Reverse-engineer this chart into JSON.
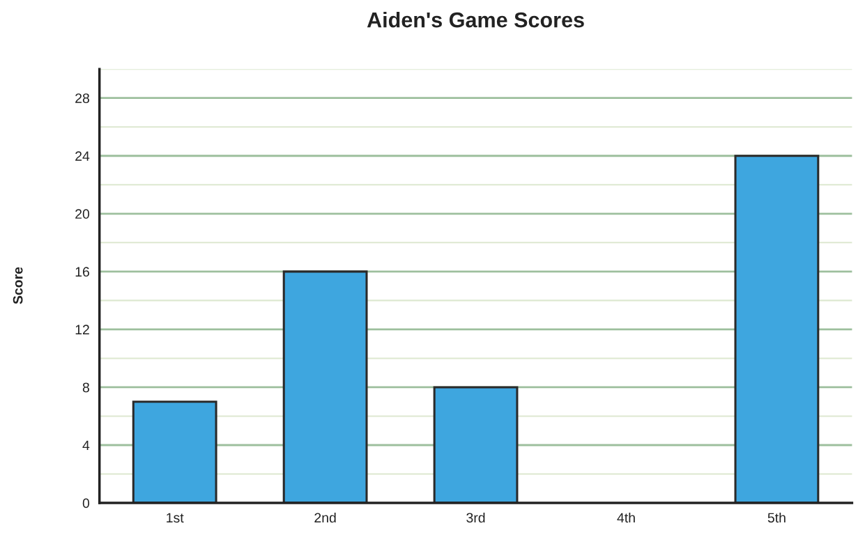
{
  "chart_data": {
    "type": "bar",
    "title": "Aiden's Game Scores",
    "ylabel": "Score",
    "categories": [
      "1st",
      "2nd",
      "3rd",
      "4th",
      "5th"
    ],
    "values": [
      7,
      16,
      8,
      0,
      24
    ],
    "color": "#3ea6df",
    "ylim": [
      0,
      30
    ],
    "yticks": [
      0,
      {
        "value": 2,
        "label": null
      },
      4,
      {
        "value": 6,
        "label": null
      },
      8,
      {
        "value": 10,
        "label": null
      },
      12,
      {
        "value": 14,
        "label": null
      },
      16,
      {
        "value": 18,
        "label": null
      },
      20,
      {
        "value": 22,
        "label": null
      },
      24,
      {
        "value": 26,
        "label": null
      },
      28,
      {
        "value": 30,
        "label": null
      }
    ],
    "grid": "y"
  }
}
